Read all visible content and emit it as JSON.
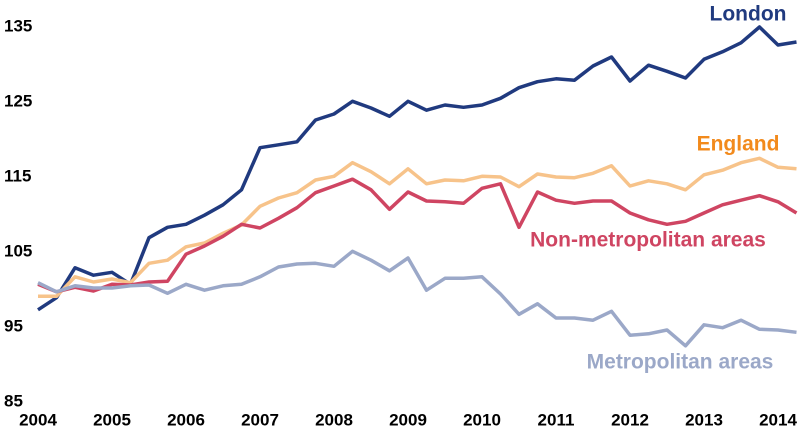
{
  "chart_data": {
    "type": "line",
    "x": [
      2004,
      2004.25,
      2004.5,
      2004.75,
      2005,
      2005.25,
      2005.5,
      2005.75,
      2006,
      2006.25,
      2006.5,
      2006.75,
      2007,
      2007.25,
      2007.5,
      2007.75,
      2008,
      2008.25,
      2008.5,
      2008.75,
      2009,
      2009.25,
      2009.5,
      2009.75,
      2010,
      2010.25,
      2010.5,
      2010.75,
      2011,
      2011.25,
      2011.5,
      2011.75,
      2012,
      2012.25,
      2012.5,
      2012.75,
      2013,
      2013.25,
      2013.5,
      2013.75,
      2014,
      2014.25
    ],
    "series": [
      {
        "name": "London",
        "color": "#203a7f",
        "label_color": "#203a7f",
        "values": [
          97.3,
          98.9,
          102.9,
          101.9,
          102.3,
          100.7,
          106.9,
          108.3,
          108.7,
          109.9,
          111.3,
          113.3,
          118.9,
          119.3,
          119.7,
          122.6,
          123.4,
          125.1,
          124.2,
          123.1,
          125.1,
          123.9,
          124.6,
          124.3,
          124.6,
          125.5,
          126.9,
          127.7,
          128.1,
          127.9,
          129.8,
          131.0,
          127.8,
          129.9,
          129.1,
          128.2,
          130.7,
          131.7,
          132.9,
          135.0,
          132.6,
          133.0
        ]
      },
      {
        "name": "England",
        "color": "#f7c38a",
        "label_color": "#f28a1c",
        "values": [
          99.1,
          99.1,
          101.7,
          101.0,
          101.4,
          100.9,
          103.5,
          103.9,
          105.7,
          106.2,
          107.5,
          108.6,
          111.1,
          112.2,
          112.9,
          114.6,
          115.1,
          116.9,
          115.7,
          114.1,
          116.1,
          114.1,
          114.6,
          114.5,
          115.1,
          115.0,
          113.7,
          115.4,
          115.0,
          114.9,
          115.5,
          116.5,
          113.8,
          114.5,
          114.1,
          113.3,
          115.3,
          115.9,
          116.9,
          117.5,
          116.3,
          116.1
        ]
      },
      {
        "name": "Non-metropolitan areas",
        "color": "#cf4562",
        "label_color": "#cf4562",
        "values": [
          100.7,
          99.7,
          100.3,
          99.8,
          100.7,
          100.6,
          101.0,
          101.1,
          104.7,
          105.8,
          107.1,
          108.7,
          108.2,
          109.5,
          110.9,
          112.9,
          113.8,
          114.7,
          113.3,
          110.7,
          113.0,
          111.8,
          111.7,
          111.5,
          113.5,
          114.1,
          108.3,
          113.0,
          111.9,
          111.5,
          111.8,
          111.8,
          110.2,
          109.3,
          108.7,
          109.1,
          110.2,
          111.3,
          111.9,
          112.5,
          111.7,
          110.2
        ]
      },
      {
        "name": "Metropolitan areas",
        "color": "#9ba8c8",
        "label_color": "#9ba8c8",
        "values": [
          100.9,
          99.7,
          100.5,
          100.2,
          100.2,
          100.5,
          100.6,
          99.5,
          100.7,
          99.9,
          100.5,
          100.7,
          101.7,
          103.0,
          103.4,
          103.5,
          103.1,
          105.1,
          103.9,
          102.5,
          104.2,
          99.9,
          101.5,
          101.5,
          101.7,
          99.4,
          96.7,
          98.1,
          96.2,
          96.2,
          95.9,
          97.1,
          93.9,
          94.1,
          94.6,
          92.5,
          95.3,
          94.9,
          95.9,
          94.7,
          94.6,
          94.3
        ]
      }
    ],
    "xlim": [
      2004,
      2014.3
    ],
    "xticks": [
      2004,
      2005,
      2006,
      2007,
      2008,
      2009,
      2010,
      2011,
      2012,
      2013,
      2014
    ],
    "ylim": [
      85,
      135
    ],
    "yticks": [
      85,
      95,
      105,
      115,
      125,
      135
    ],
    "grid": false
  }
}
